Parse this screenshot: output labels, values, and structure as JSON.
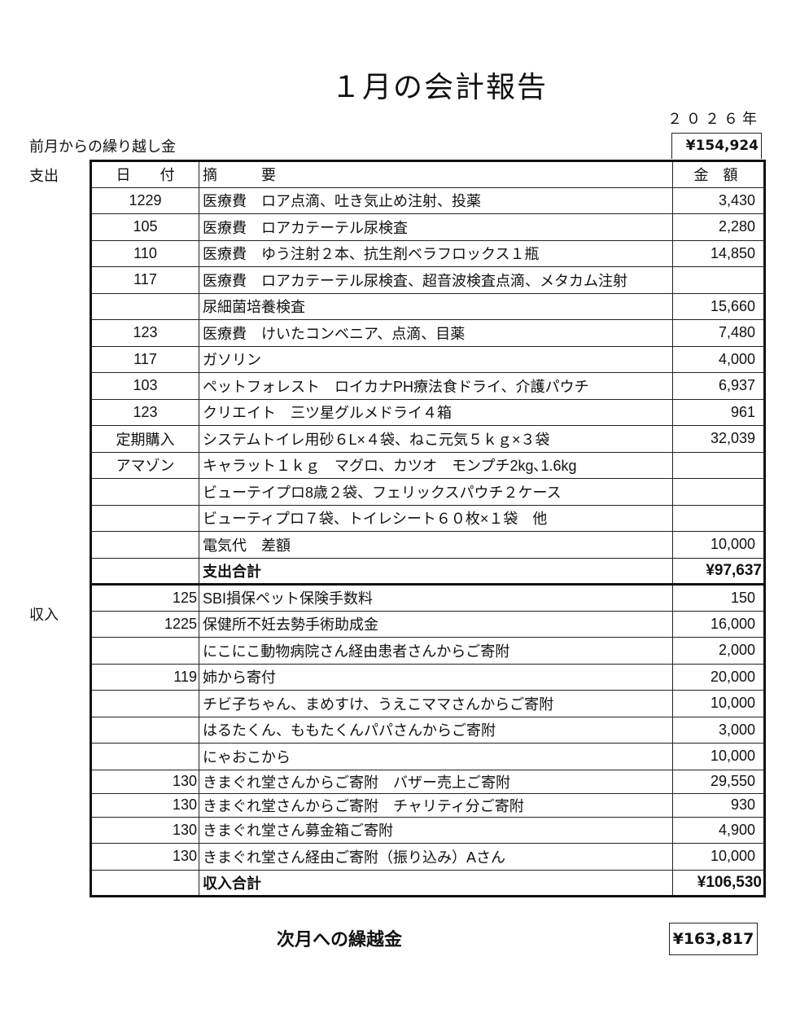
{
  "title": "１月の会計報告",
  "year": "２０２６年",
  "carryover": {
    "label": "前月からの繰り越し金",
    "amount": "¥154,924"
  },
  "headers": {
    "date": "日　　付",
    "desc": "摘　　　要",
    "amount": "金　額"
  },
  "expenses": {
    "section_label": "支出",
    "rows": [
      {
        "date": "1229",
        "desc": "医療費　ロア点滴、吐き気止め注射、投薬",
        "amount": "3,430"
      },
      {
        "date": "105",
        "desc": "医療費　ロアカテーテル尿検査",
        "amount": "2,280"
      },
      {
        "date": "110",
        "desc": "医療費　ゆう注射２本、抗生剤ベラフロックス１瓶",
        "amount": "14,850"
      },
      {
        "date": "117",
        "desc": "医療費　ロアカテーテル尿検査、超音波検査点滴、メタカム注射",
        "amount": ""
      },
      {
        "date": "",
        "desc": "尿細菌培養検査",
        "amount": "15,660"
      },
      {
        "date": "123",
        "desc": "医療費　けいたコンベニア、点滴、目薬",
        "amount": "7,480"
      },
      {
        "date": "117",
        "desc": "ガソリン",
        "amount": "4,000"
      },
      {
        "date": "103",
        "desc": "ペットフォレスト　ロイカナPH療法食ドライ、介護パウチ",
        "amount": "6,937"
      },
      {
        "date": "123",
        "desc": "クリエイト　三ツ星グルメドライ４箱",
        "amount": "961"
      },
      {
        "date": "定期購入",
        "desc": "システムトイレ用砂６L×４袋、ねこ元気５ｋｇ×３袋",
        "amount": "32,039"
      },
      {
        "date": "アマゾン",
        "desc": "キャラット１ｋｇ　マグロ、カツオ　モンプチ2kg､1.6kg",
        "amount": ""
      },
      {
        "date": "",
        "desc": "ビューテイプロ8歳２袋、フェリックスパウチ２ケース",
        "amount": ""
      },
      {
        "date": "",
        "desc": "ビューティプロ７袋、トイレシート６０枚×１袋　他",
        "amount": ""
      },
      {
        "date": "",
        "desc": "電気代　差額",
        "amount": "10,000"
      }
    ],
    "total_label": "支出合計",
    "total": "¥97,637"
  },
  "income": {
    "section_label": "収入",
    "rows": [
      {
        "date": "125",
        "desc": "SBI損保ペット保険手数料",
        "amount": "150"
      },
      {
        "date": "1225",
        "desc": "保健所不妊去勢手術助成金",
        "amount": "16,000"
      },
      {
        "date": "",
        "desc": "にこにこ動物病院さん経由患者さんからご寄附",
        "amount": "2,000"
      },
      {
        "date": "119",
        "desc": "姉から寄付",
        "amount": "20,000"
      },
      {
        "date": "",
        "desc": "チビ子ちゃん、まめすけ、うえこママさんからご寄附",
        "amount": "10,000"
      },
      {
        "date": "",
        "desc": "はるたくん、ももたくんパパさんからご寄附",
        "amount": "3,000"
      },
      {
        "date": "",
        "desc": "にゃおこから",
        "amount": "10,000"
      },
      {
        "date": "130",
        "desc": "きまぐれ堂さんからご寄附　バザー売上ご寄附",
        "amount": "29,550"
      },
      {
        "date": "130",
        "desc": "きまぐれ堂さんからご寄附　チャリティ分ご寄附",
        "amount": "930"
      },
      {
        "date": "130",
        "desc": "きまぐれ堂さん募金箱ご寄附",
        "amount": "4,900"
      },
      {
        "date": "130",
        "desc": "きまぐれ堂さん経由ご寄附（振り込み）Aさん",
        "amount": "10,000"
      }
    ],
    "total_label": "収入合計",
    "total": "¥106,530"
  },
  "next_carryover": {
    "label": "次月への繰越金",
    "amount": "¥163,817"
  }
}
